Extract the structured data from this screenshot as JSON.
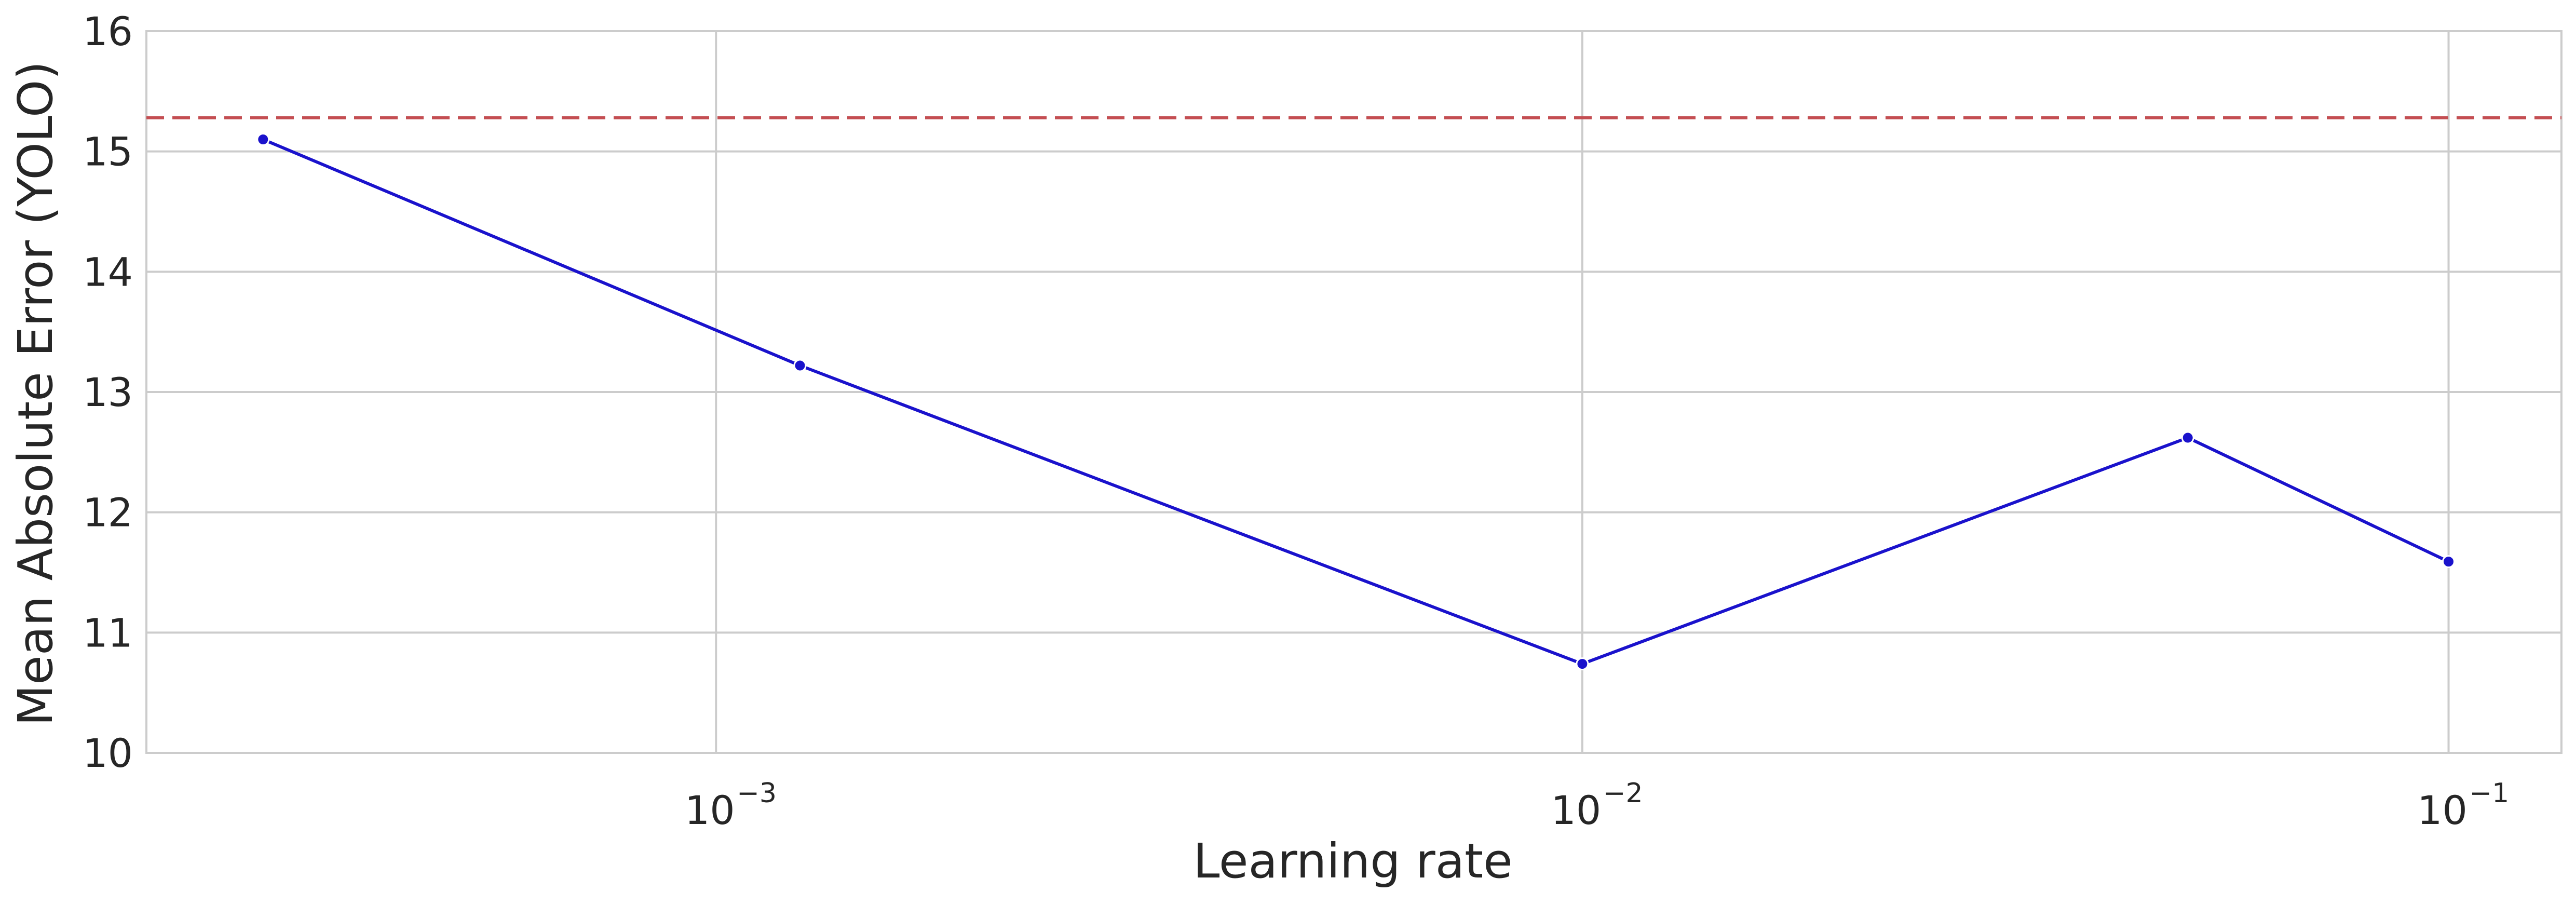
{
  "chart_data": {
    "type": "line",
    "xlabel": "Learning rate",
    "ylabel": "Mean Absolute Error (YOLO)",
    "xscale": "log",
    "xlim": [
      0.00022,
      0.135
    ],
    "ylim": [
      10,
      16
    ],
    "x_ticks": [
      {
        "value": 0.001,
        "base": "10",
        "exponent": "−3"
      },
      {
        "value": 0.01,
        "base": "10",
        "exponent": "−2"
      },
      {
        "value": 0.1,
        "base": "10",
        "exponent": "−1"
      }
    ],
    "y_ticks": [
      {
        "value": 10,
        "label": "10"
      },
      {
        "value": 11,
        "label": "11"
      },
      {
        "value": 12,
        "label": "12"
      },
      {
        "value": 13,
        "label": "13"
      },
      {
        "value": 14,
        "label": "14"
      },
      {
        "value": 15,
        "label": "15"
      },
      {
        "value": 16,
        "label": "16"
      }
    ],
    "grid": true,
    "legend": "none",
    "series": [
      {
        "color": "#1a12cc",
        "marker": "circle",
        "points": [
          {
            "x": 0.0003,
            "y": 15.1
          },
          {
            "x": 0.00125,
            "y": 13.22
          },
          {
            "x": 0.01,
            "y": 10.74
          },
          {
            "x": 0.05,
            "y": 12.62
          },
          {
            "x": 0.1,
            "y": 11.59
          }
        ]
      }
    ],
    "reference_line": {
      "orientation": "horizontal",
      "y": 15.28,
      "color": "#c44e52",
      "style": "dashed"
    },
    "colors": {
      "grid": "#cccccc",
      "spine": "#cccccc",
      "text": "#262626",
      "background": "#ffffff"
    }
  }
}
